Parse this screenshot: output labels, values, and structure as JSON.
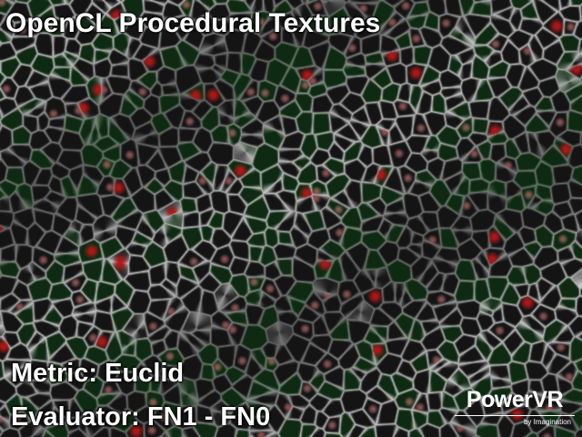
{
  "app": {
    "title": "OpenCL Procedural Textures"
  },
  "status": {
    "metric_text": "Metric: Euclid",
    "evaluator_text": "Evaluator: FN1 - FN0"
  },
  "logo": {
    "wordmark": "PowerVR",
    "tagline": "by Imagination"
  },
  "texture": {
    "description_type": "procedural-cellular-noise",
    "colors": {
      "background": "#0a0a0a",
      "edge_light": "#cfcfcf",
      "edge_mid": "#6a6a6a",
      "cell_dark": "#141414",
      "cell_green": "#0e2a12",
      "hot_red": "#b01818",
      "hot_pink": "#e08080"
    }
  }
}
